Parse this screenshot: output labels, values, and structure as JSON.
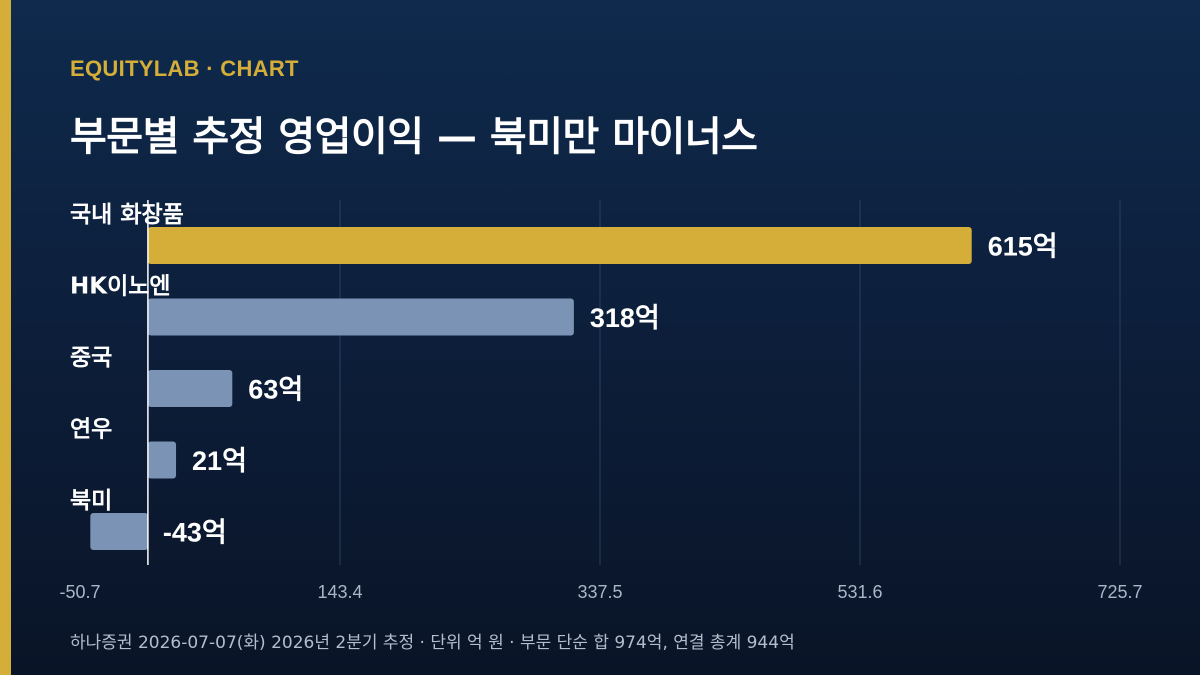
{
  "header": {
    "brand": "EQUITYLAB · CHART",
    "title": "부문별 추정 영업이익 — 북미만 마이너스"
  },
  "footer": {
    "source": "하나증권 2026-07-07(화) 2026년 2분기 추정 · 단위 억 원 · 부문 단순 합 974억, 연결 총계 944억"
  },
  "colors": {
    "background": "#0c1d38",
    "accent": "#d4ae38",
    "highlight_bar": "#d4ae38",
    "bar": "#7b93b4",
    "gridline": "#2a3f5e",
    "zero_line": "#ffffff"
  },
  "chart_data": {
    "type": "bar",
    "orientation": "horizontal",
    "title": "부문별 추정 영업이익 — 북미만 마이너스",
    "unit": "억",
    "categories": [
      "국내 화장품",
      "HK이노엔",
      "중국",
      "연우",
      "북미"
    ],
    "values": [
      615,
      318,
      63,
      21,
      -43
    ],
    "value_labels": [
      "615억",
      "318억",
      "63억",
      "21억",
      "-43억"
    ],
    "highlight_index": 0,
    "xlim": [
      -50.7,
      725.7
    ],
    "xticks": [
      -50.7,
      143.4,
      337.5,
      531.6,
      725.7
    ],
    "xtick_labels": [
      "-50.7",
      "143.4",
      "337.5",
      "531.6",
      "725.7"
    ],
    "grid": true
  }
}
